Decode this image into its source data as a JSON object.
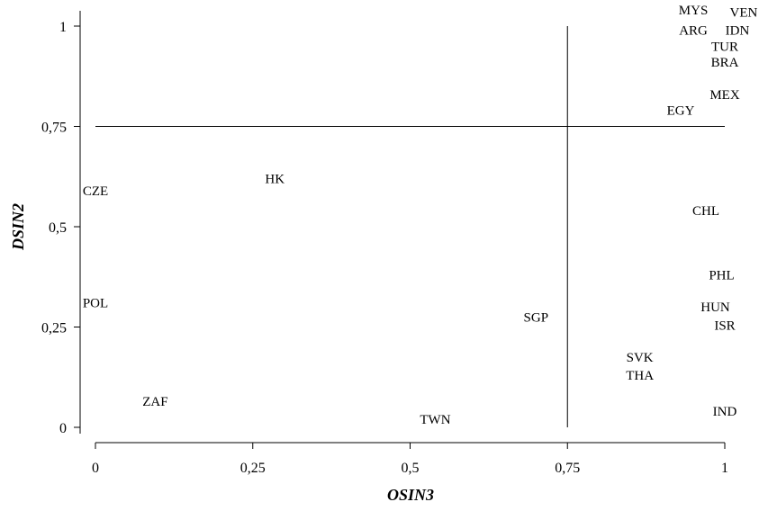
{
  "chart_data": {
    "type": "scatter",
    "title": "",
    "xlabel": "OSIN3",
    "ylabel": "DSIN2",
    "xlim": [
      0,
      1
    ],
    "ylim": [
      0,
      1
    ],
    "x_ticks": [
      0,
      0.25,
      0.5,
      0.75,
      1
    ],
    "x_tick_labels": [
      "0",
      "0,25",
      "0,5",
      "0,75",
      "1"
    ],
    "y_ticks": [
      0,
      0.25,
      0.5,
      0.75,
      1
    ],
    "y_tick_labels": [
      "0",
      "0,25",
      "0,5",
      "0,75",
      "1"
    ],
    "grid": false,
    "reference_lines": [
      {
        "orientation": "horizontal",
        "value": 0.75
      },
      {
        "orientation": "vertical",
        "value": 0.75
      }
    ],
    "points": [
      {
        "label": "MYS",
        "x": 0.95,
        "y": 1.04
      },
      {
        "label": "VEN",
        "x": 1.03,
        "y": 1.035
      },
      {
        "label": "ARG",
        "x": 0.95,
        "y": 0.99
      },
      {
        "label": "IDN",
        "x": 1.02,
        "y": 0.99
      },
      {
        "label": "TUR",
        "x": 1.0,
        "y": 0.95
      },
      {
        "label": "BRA",
        "x": 1.0,
        "y": 0.91
      },
      {
        "label": "MEX",
        "x": 1.0,
        "y": 0.83
      },
      {
        "label": "EGY",
        "x": 0.93,
        "y": 0.79
      },
      {
        "label": "HK",
        "x": 0.285,
        "y": 0.62
      },
      {
        "label": "CZE",
        "x": 0.0,
        "y": 0.59
      },
      {
        "label": "CHL",
        "x": 0.97,
        "y": 0.54
      },
      {
        "label": "PHL",
        "x": 0.995,
        "y": 0.38
      },
      {
        "label": "POL",
        "x": 0.0,
        "y": 0.31
      },
      {
        "label": "HUN",
        "x": 0.985,
        "y": 0.3
      },
      {
        "label": "SGP",
        "x": 0.7,
        "y": 0.275
      },
      {
        "label": "ISR",
        "x": 1.0,
        "y": 0.255
      },
      {
        "label": "SVK",
        "x": 0.865,
        "y": 0.175
      },
      {
        "label": "THA",
        "x": 0.865,
        "y": 0.13
      },
      {
        "label": "ZAF",
        "x": 0.095,
        "y": 0.065
      },
      {
        "label": "IND",
        "x": 1.0,
        "y": 0.04
      },
      {
        "label": "TWN",
        "x": 0.54,
        "y": 0.02
      }
    ]
  }
}
